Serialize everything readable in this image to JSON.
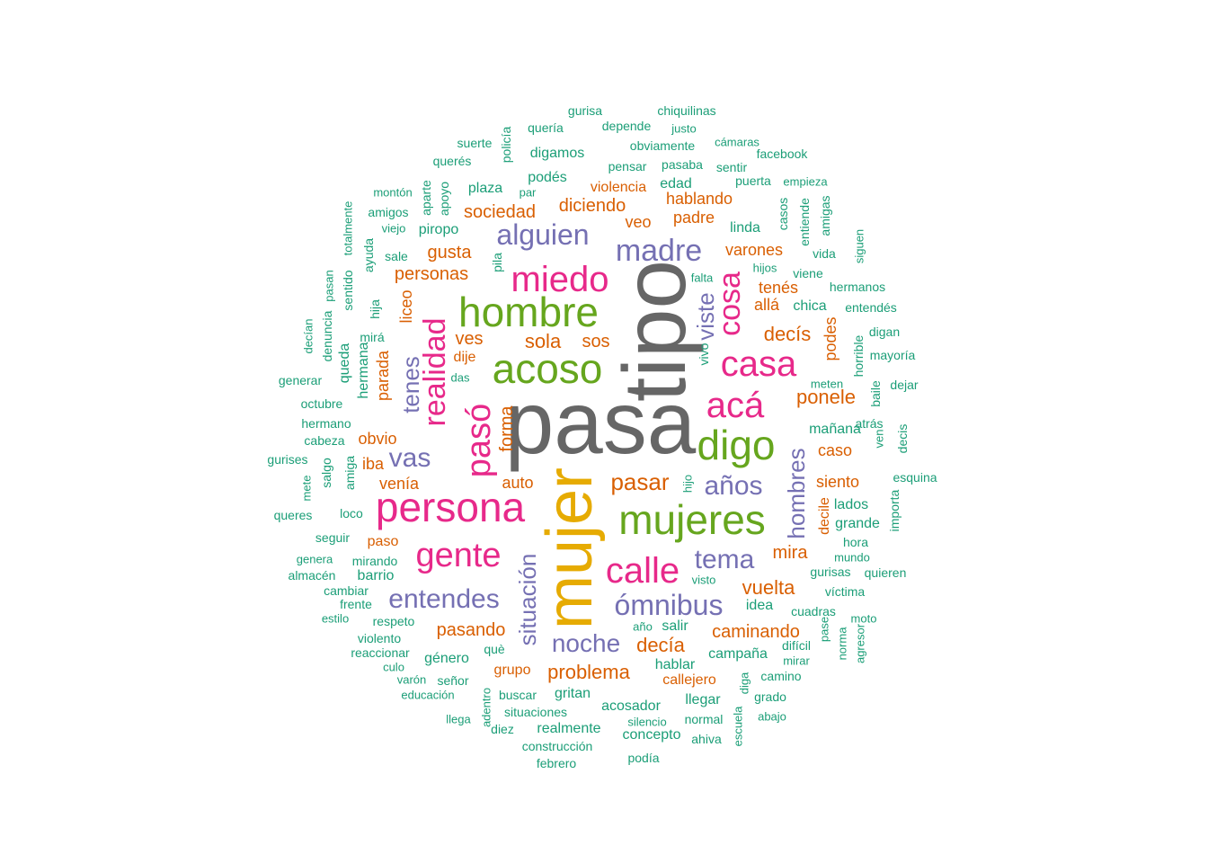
{
  "colors": {
    "gray": "#666666",
    "teal": "#1b9e77",
    "orange": "#d95f02",
    "purple": "#7570b3",
    "pink": "#e7298a",
    "green": "#66a61e",
    "gold": "#e6ab02"
  },
  "words": [
    {
      "text": "pasa",
      "color": "gray"
    },
    {
      "text": "tipo",
      "color": "gray"
    },
    {
      "text": "mujer",
      "color": "gold"
    },
    {
      "text": "hombre",
      "color": "green"
    },
    {
      "text": "acoso",
      "color": "green"
    },
    {
      "text": "digo",
      "color": "green"
    },
    {
      "text": "mujeres",
      "color": "green"
    },
    {
      "text": "persona",
      "color": "pink"
    },
    {
      "text": "miedo",
      "color": "pink"
    },
    {
      "text": "casa",
      "color": "pink"
    },
    {
      "text": "acá",
      "color": "pink"
    },
    {
      "text": "calle",
      "color": "pink"
    },
    {
      "text": "gente",
      "color": "pink"
    },
    {
      "text": "pasó",
      "color": "pink"
    },
    {
      "text": "realidad",
      "color": "pink"
    },
    {
      "text": "cosa",
      "color": "pink"
    },
    {
      "text": "madre",
      "color": "purple"
    },
    {
      "text": "alguien",
      "color": "purple"
    },
    {
      "text": "vas",
      "color": "purple"
    },
    {
      "text": "años",
      "color": "purple"
    },
    {
      "text": "tema",
      "color": "purple"
    },
    {
      "text": "ómnibus",
      "color": "purple"
    },
    {
      "text": "entendes",
      "color": "purple"
    },
    {
      "text": "noche",
      "color": "purple"
    },
    {
      "text": "situación",
      "color": "purple"
    },
    {
      "text": "hombres",
      "color": "purple"
    },
    {
      "text": "viste",
      "color": "purple"
    },
    {
      "text": "tenes",
      "color": "purple"
    },
    {
      "text": "pasar",
      "color": "orange"
    },
    {
      "text": "vuelta",
      "color": "orange"
    },
    {
      "text": "decía",
      "color": "orange"
    },
    {
      "text": "problema",
      "color": "orange"
    },
    {
      "text": "caminando",
      "color": "orange"
    },
    {
      "text": "pasando",
      "color": "orange"
    },
    {
      "text": "personas",
      "color": "orange"
    },
    {
      "text": "gusta",
      "color": "orange"
    },
    {
      "text": "sociedad",
      "color": "orange"
    },
    {
      "text": "diciendo",
      "color": "orange"
    },
    {
      "text": "violencia",
      "color": "orange"
    },
    {
      "text": "hablando",
      "color": "orange"
    },
    {
      "text": "padre",
      "color": "orange"
    },
    {
      "text": "veo",
      "color": "orange"
    },
    {
      "text": "varones",
      "color": "orange"
    },
    {
      "text": "tenés",
      "color": "orange"
    },
    {
      "text": "allá",
      "color": "orange"
    },
    {
      "text": "decís",
      "color": "orange"
    },
    {
      "text": "ponele",
      "color": "orange"
    },
    {
      "text": "caso",
      "color": "orange"
    },
    {
      "text": "siento",
      "color": "orange"
    },
    {
      "text": "mira",
      "color": "orange"
    },
    {
      "text": "sola",
      "color": "orange"
    },
    {
      "text": "sos",
      "color": "orange"
    },
    {
      "text": "ves",
      "color": "orange"
    },
    {
      "text": "dije",
      "color": "orange"
    },
    {
      "text": "obvio",
      "color": "orange"
    },
    {
      "text": "iba",
      "color": "orange"
    },
    {
      "text": "venía",
      "color": "orange"
    },
    {
      "text": "auto",
      "color": "orange"
    },
    {
      "text": "paso",
      "color": "orange"
    },
    {
      "text": "grupo",
      "color": "orange"
    },
    {
      "text": "callejero",
      "color": "orange"
    },
    {
      "text": "forma",
      "color": "orange"
    },
    {
      "text": "liceo",
      "color": "orange"
    },
    {
      "text": "parada",
      "color": "orange"
    },
    {
      "text": "podes",
      "color": "orange"
    },
    {
      "text": "decile",
      "color": "orange"
    },
    {
      "text": "gurisa",
      "color": "teal"
    },
    {
      "text": "chiquilinas",
      "color": "teal"
    },
    {
      "text": "quería",
      "color": "teal"
    },
    {
      "text": "depende",
      "color": "teal"
    },
    {
      "text": "justo",
      "color": "teal"
    },
    {
      "text": "suerte",
      "color": "teal"
    },
    {
      "text": "policía",
      "color": "teal"
    },
    {
      "text": "obviamente",
      "color": "teal"
    },
    {
      "text": "cámaras",
      "color": "teal"
    },
    {
      "text": "digamos",
      "color": "teal"
    },
    {
      "text": "facebook",
      "color": "teal"
    },
    {
      "text": "querés",
      "color": "teal"
    },
    {
      "text": "pensar",
      "color": "teal"
    },
    {
      "text": "pasaba",
      "color": "teal"
    },
    {
      "text": "sentir",
      "color": "teal"
    },
    {
      "text": "podés",
      "color": "teal"
    },
    {
      "text": "edad",
      "color": "teal"
    },
    {
      "text": "puerta",
      "color": "teal"
    },
    {
      "text": "empieza",
      "color": "teal"
    },
    {
      "text": "montón",
      "color": "teal"
    },
    {
      "text": "aparte",
      "color": "teal"
    },
    {
      "text": "apoyo",
      "color": "teal"
    },
    {
      "text": "plaza",
      "color": "teal"
    },
    {
      "text": "par",
      "color": "teal"
    },
    {
      "text": "totalmente",
      "color": "teal"
    },
    {
      "text": "amigos",
      "color": "teal"
    },
    {
      "text": "casos",
      "color": "teal"
    },
    {
      "text": "entiende",
      "color": "teal"
    },
    {
      "text": "amigas",
      "color": "teal"
    },
    {
      "text": "viejo",
      "color": "teal"
    },
    {
      "text": "piropo",
      "color": "teal"
    },
    {
      "text": "linda",
      "color": "teal"
    },
    {
      "text": "ayuda",
      "color": "teal"
    },
    {
      "text": "sale",
      "color": "teal"
    },
    {
      "text": "pila",
      "color": "teal"
    },
    {
      "text": "vida",
      "color": "teal"
    },
    {
      "text": "siguen",
      "color": "teal"
    },
    {
      "text": "hijos",
      "color": "teal"
    },
    {
      "text": "viene",
      "color": "teal"
    },
    {
      "text": "pasan",
      "color": "teal"
    },
    {
      "text": "sentido",
      "color": "teal"
    },
    {
      "text": "falta",
      "color": "teal"
    },
    {
      "text": "hermanos",
      "color": "teal"
    },
    {
      "text": "hija",
      "color": "teal"
    },
    {
      "text": "chica",
      "color": "teal"
    },
    {
      "text": "entendés",
      "color": "teal"
    },
    {
      "text": "decían",
      "color": "teal"
    },
    {
      "text": "denuncia",
      "color": "teal"
    },
    {
      "text": "mirá",
      "color": "teal"
    },
    {
      "text": "digan",
      "color": "teal"
    },
    {
      "text": "queda",
      "color": "teal"
    },
    {
      "text": "hermana",
      "color": "teal"
    },
    {
      "text": "vivo",
      "color": "teal"
    },
    {
      "text": "horrible",
      "color": "teal"
    },
    {
      "text": "mayoría",
      "color": "teal"
    },
    {
      "text": "generar",
      "color": "teal"
    },
    {
      "text": "das",
      "color": "teal"
    },
    {
      "text": "meten",
      "color": "teal"
    },
    {
      "text": "baile",
      "color": "teal"
    },
    {
      "text": "dejar",
      "color": "teal"
    },
    {
      "text": "octubre",
      "color": "teal"
    },
    {
      "text": "mañana",
      "color": "teal"
    },
    {
      "text": "atrás",
      "color": "teal"
    },
    {
      "text": "ven",
      "color": "teal"
    },
    {
      "text": "decis",
      "color": "teal"
    },
    {
      "text": "hermano",
      "color": "teal"
    },
    {
      "text": "cabeza",
      "color": "teal"
    },
    {
      "text": "gurises",
      "color": "teal"
    },
    {
      "text": "salgo",
      "color": "teal"
    },
    {
      "text": "amiga",
      "color": "teal"
    },
    {
      "text": "hijo",
      "color": "teal"
    },
    {
      "text": "esquina",
      "color": "teal"
    },
    {
      "text": "mete",
      "color": "teal"
    },
    {
      "text": "lados",
      "color": "teal"
    },
    {
      "text": "importa",
      "color": "teal"
    },
    {
      "text": "queres",
      "color": "teal"
    },
    {
      "text": "loco",
      "color": "teal"
    },
    {
      "text": "grande",
      "color": "teal"
    },
    {
      "text": "seguir",
      "color": "teal"
    },
    {
      "text": "hora",
      "color": "teal"
    },
    {
      "text": "genera",
      "color": "teal"
    },
    {
      "text": "mirando",
      "color": "teal"
    },
    {
      "text": "mundo",
      "color": "teal"
    },
    {
      "text": "almacén",
      "color": "teal"
    },
    {
      "text": "barrio",
      "color": "teal"
    },
    {
      "text": "gurisas",
      "color": "teal"
    },
    {
      "text": "quieren",
      "color": "teal"
    },
    {
      "text": "cambiar",
      "color": "teal"
    },
    {
      "text": "visto",
      "color": "teal"
    },
    {
      "text": "víctima",
      "color": "teal"
    },
    {
      "text": "frente",
      "color": "teal"
    },
    {
      "text": "idea",
      "color": "teal"
    },
    {
      "text": "cuadras",
      "color": "teal"
    },
    {
      "text": "estilo",
      "color": "teal"
    },
    {
      "text": "respeto",
      "color": "teal"
    },
    {
      "text": "moto",
      "color": "teal"
    },
    {
      "text": "año",
      "color": "teal"
    },
    {
      "text": "salir",
      "color": "teal"
    },
    {
      "text": "violento",
      "color": "teal"
    },
    {
      "text": "pase",
      "color": "teal"
    },
    {
      "text": "norma",
      "color": "teal"
    },
    {
      "text": "agresor",
      "color": "teal"
    },
    {
      "text": "difícil",
      "color": "teal"
    },
    {
      "text": "reaccionar",
      "color": "teal"
    },
    {
      "text": "què",
      "color": "teal"
    },
    {
      "text": "campaña",
      "color": "teal"
    },
    {
      "text": "culo",
      "color": "teal"
    },
    {
      "text": "género",
      "color": "teal"
    },
    {
      "text": "hablar",
      "color": "teal"
    },
    {
      "text": "mirar",
      "color": "teal"
    },
    {
      "text": "varón",
      "color": "teal"
    },
    {
      "text": "señor",
      "color": "teal"
    },
    {
      "text": "camino",
      "color": "teal"
    },
    {
      "text": "educación",
      "color": "teal"
    },
    {
      "text": "buscar",
      "color": "teal"
    },
    {
      "text": "gritan",
      "color": "teal"
    },
    {
      "text": "llegar",
      "color": "teal"
    },
    {
      "text": "diga",
      "color": "teal"
    },
    {
      "text": "grado",
      "color": "teal"
    },
    {
      "text": "adentro",
      "color": "teal"
    },
    {
      "text": "acosador",
      "color": "teal"
    },
    {
      "text": "situaciones",
      "color": "teal"
    },
    {
      "text": "llega",
      "color": "teal"
    },
    {
      "text": "normal",
      "color": "teal"
    },
    {
      "text": "escuela",
      "color": "teal"
    },
    {
      "text": "abajo",
      "color": "teal"
    },
    {
      "text": "diez",
      "color": "teal"
    },
    {
      "text": "realmente",
      "color": "teal"
    },
    {
      "text": "silencio",
      "color": "teal"
    },
    {
      "text": "concepto",
      "color": "teal"
    },
    {
      "text": "ahiva",
      "color": "teal"
    },
    {
      "text": "construcción",
      "color": "teal"
    },
    {
      "text": "podía",
      "color": "teal"
    },
    {
      "text": "febrero",
      "color": "teal"
    }
  ]
}
